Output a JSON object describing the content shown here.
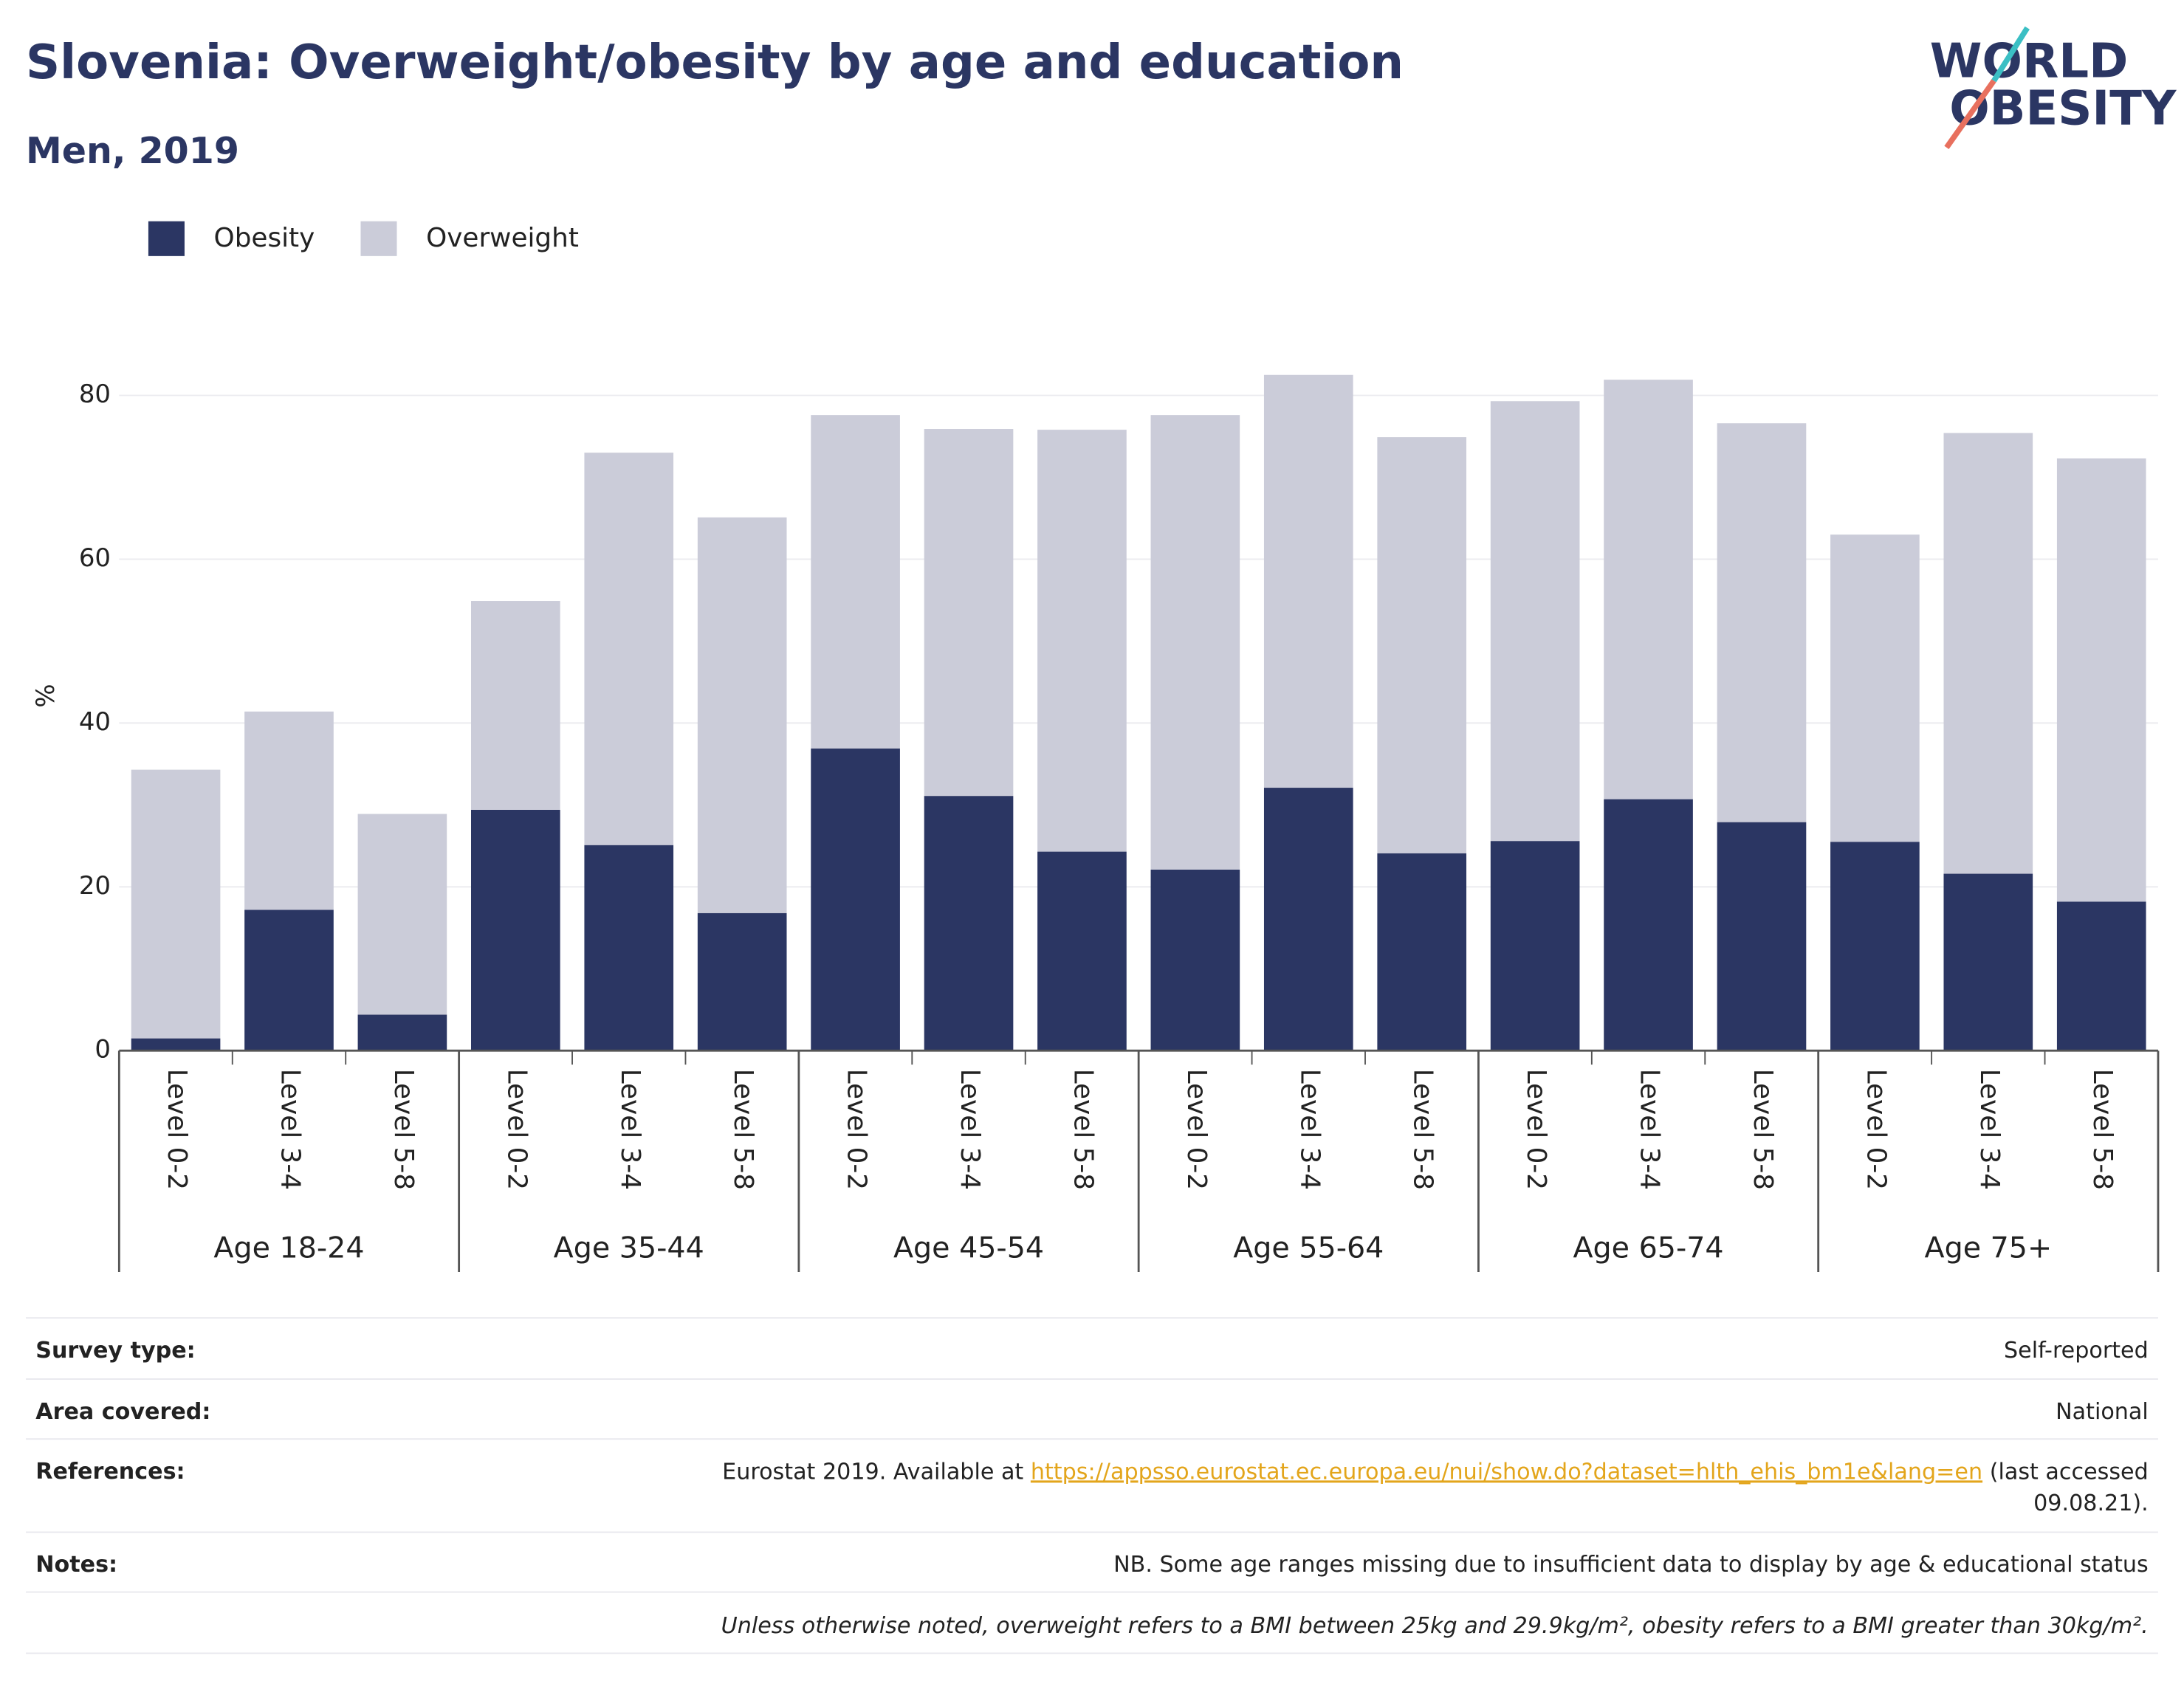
{
  "chart_data": {
    "type": "stacked_bar",
    "title": "Slovenia: Overweight/obesity by age and education",
    "subtitle": "Men, 2019",
    "y_label": "%",
    "categories": [
      "Level 0-2",
      "Level 3-4",
      "Level 5-8",
      "Level 0-2",
      "Level 3-4",
      "Level 5-8",
      "Level 0-2",
      "Level 3-4",
      "Level 5-8",
      "Level 0-2",
      "Level 3-4",
      "Level 5-8",
      "Level 0-2",
      "Level 3-4",
      "Level 5-8",
      "Level 0-2",
      "Level 3-4",
      "Level 5-8"
    ],
    "groups": [
      "Age 18-24",
      "Age 35-44",
      "Age 45-54",
      "Age 55-64",
      "Age 65-74",
      "Age 75+"
    ],
    "series": [
      {
        "name": "Obesity",
        "color": "#2b3663",
        "values": [
          1.5,
          17.2,
          4.4,
          29.4,
          25.1,
          16.8,
          36.9,
          31.1,
          24.3,
          22.1,
          32.1,
          24.1,
          25.6,
          30.7,
          27.9,
          25.5,
          21.6,
          18.2
        ]
      },
      {
        "name": "Overweight",
        "color": "#cbccd9",
        "values": [
          32.8,
          24.2,
          24.5,
          25.5,
          47.9,
          48.3,
          40.7,
          44.8,
          51.5,
          55.5,
          50.4,
          50.8,
          53.7,
          51.2,
          48.7,
          37.5,
          53.8,
          54.1
        ]
      }
    ],
    "ylim": [
      0,
      88
    ],
    "yticks": [
      0,
      20,
      40,
      60,
      80
    ],
    "grid": true
  },
  "logo": [
    "WORLD",
    "OBESITY"
  ],
  "footer": {
    "survey_label": "Survey type:",
    "survey_value": "Self-reported",
    "area_label": "Area covered:",
    "area_value": "National",
    "ref_label": "References:",
    "ref_prefix": "Eurostat 2019. Available at",
    "ref_link": "https://appsso.eurostat.ec.europa.eu/nui/show.do?dataset=hlth_ehis_bm1e&lang=en",
    "ref_suffix": "(last accessed",
    "ref_suffix_2": "09.08.21).",
    "notes_label": "Notes:",
    "notes_value": "NB. Some age ranges missing due to insufficient data to display by age & educational status",
    "definition": "Unless otherwise noted, overweight refers to a BMI between 25kg and 29.9kg/m², obesity refers to a BMI greater than 30kg/m²."
  }
}
